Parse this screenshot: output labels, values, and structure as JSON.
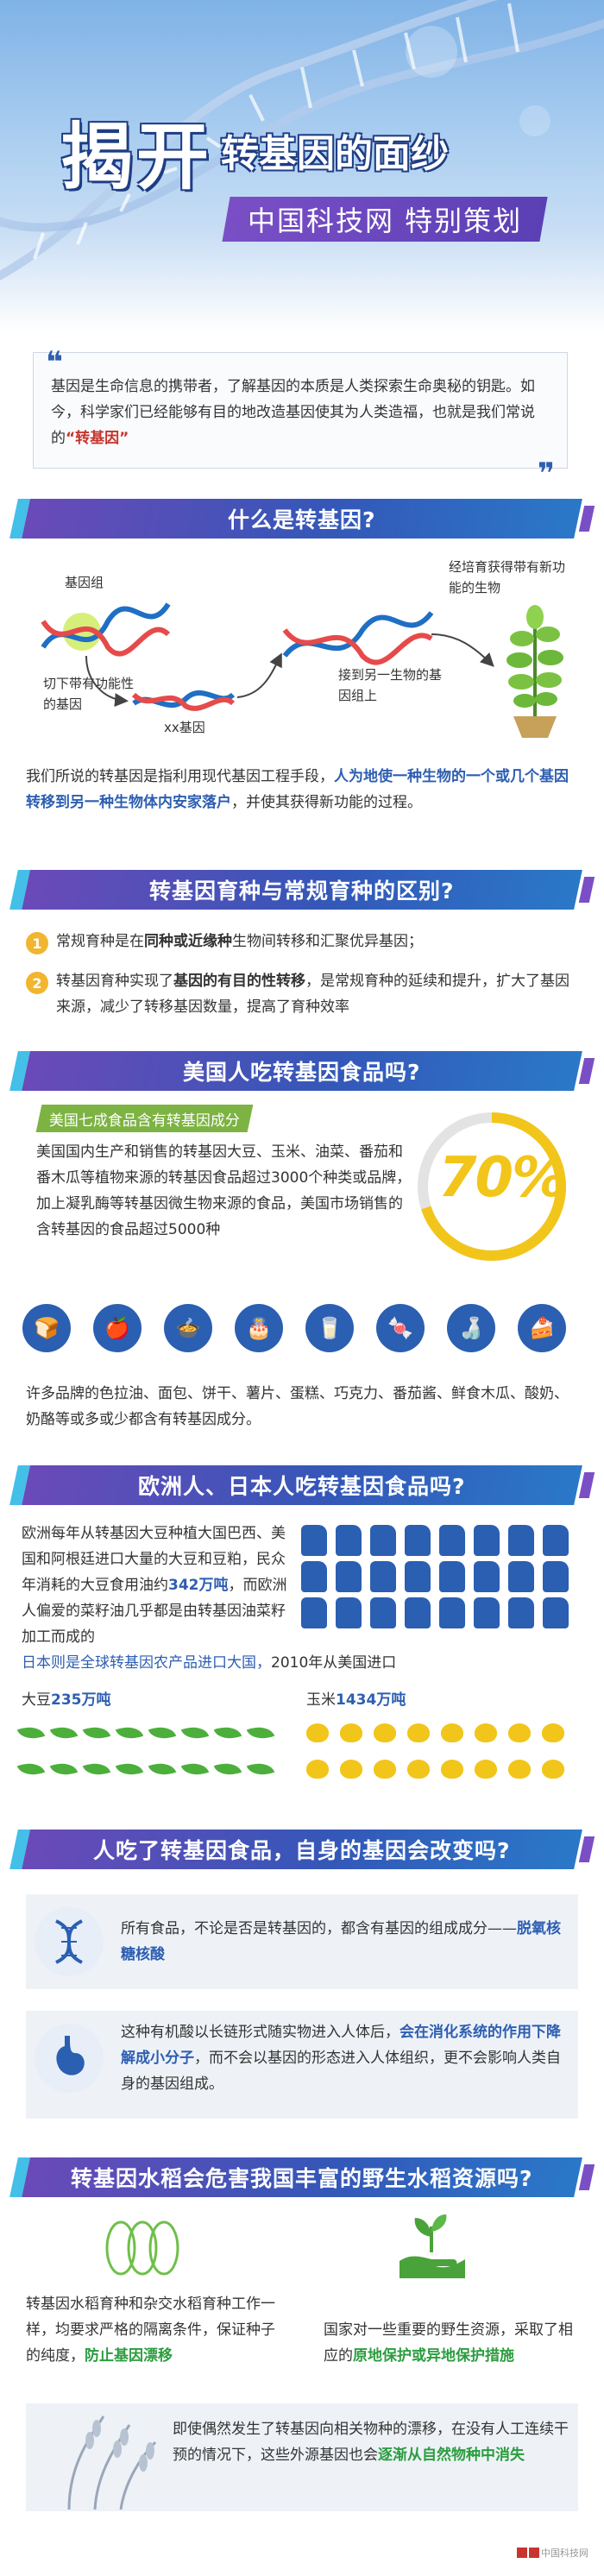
{
  "header": {
    "title_main": "揭开",
    "title_sub": "转基因的面纱",
    "subtitle": "中国科技网  特别策划"
  },
  "intro": {
    "text": "基因是生命信息的携带者，了解基因的本质是人类探索生命奥秘的钥匙。如今，科学家们已经能够有目的地改造基因使其为人类造福，也就是我们常说的",
    "highlight": "“转基因”"
  },
  "section1": {
    "title": "什么是转基因?",
    "label_gene_group": "基因组",
    "label_cut": "切下带有功能性的基因",
    "label_xx": "xx基因",
    "label_connect": "接到另一生物的基因组上",
    "label_result": "经培育获得带有新功能的生物",
    "desc_a": "我们所说的转基因是指利用现代基因工程手段，",
    "desc_b": "人为地使一种生物的一个或几个基因转移到另一种生物体内安家落户",
    "desc_c": "，并使其获得新功能的过程。"
  },
  "section2": {
    "title": "转基因育种与常规育种的区别?",
    "item1_num": "1",
    "item1_a": "常规育种是在",
    "item1_b": "同种或近缘种",
    "item1_c": "生物间转移和汇聚优异基因；",
    "item2_num": "2",
    "item2_a": "转基因育种实现了",
    "item2_b": "基因的有目的性转移",
    "item2_c": "，是常规育种的延续和提升，扩大了基因来源，减少了转移基因数量，提高了育种效率"
  },
  "section3": {
    "title": "美国人吃转基因食品吗?",
    "banner": "美国七成食品含有转基因成分",
    "percent": "70%",
    "body": "美国国内生产和销售的转基因大豆、玉米、油菜、番茄和番木瓜等植物来源的转基因食品超过3000个种类或品牌，加上凝乳酶等转基因微生物来源的食品，美国市场销售的含转基因的食品超过5000种",
    "footer": "许多品牌的色拉油、面包、饼干、薯片、蛋糕、巧克力、番茄酱、鲜食木瓜、酸奶、奶酪等或多或少都含有转基因成分。",
    "icons": [
      "bread-icon",
      "apple-icon",
      "pot-icon",
      "cake-icon",
      "milk-box-icon",
      "candy-icon",
      "bottle-icon",
      "cake-slice-icon"
    ]
  },
  "section4": {
    "title": "欧洲人、日本人吃转基因食品吗?",
    "body_a": "欧洲每年从转基因大豆种植大国巴西、美国和阿根廷进口大量的大豆和豆粕，民众年消耗的大豆食用油约",
    "body_b": "342万吨",
    "body_c": "，而欧洲人偏爱的菜籽油几乎都是由转基因油菜籽加工而成的",
    "japan_a": "日本则是全球转基因农产品进口大国，",
    "japan_b": "2010年从美国进口",
    "soy_label": "大豆",
    "soy_value": "235万吨",
    "corn_label": "玉米",
    "corn_value": "1434万吨"
  },
  "section5": {
    "title": "人吃了转基因食品，自身的基因会改变吗?",
    "p1_a": "所有食品，不论是否是转基因的，都含有基因的组成成分——",
    "p1_b": "脱氧核糖核酸",
    "p2_a": "这种有机酸以长链形式随实物进入人体后，",
    "p2_b": "会在消化系统的作用下降解成小分子",
    "p2_c": "，而不会以基因的形态进入人体组织，更不会影响人类自身的基因组成。"
  },
  "section6": {
    "title": "转基因水稻会危害我国丰富的野生水稻资源吗?",
    "left_a": "转基因水稻育种和杂交水稻育种工作一样，均要求严格的隔离条件，保证种子的纯度，",
    "left_b": "防止基因漂移",
    "right_a": "国家对一些重要的野生资源，采取了相应的",
    "right_b": "原地保护或异地保护措施",
    "bottom_a": "即使偶然发生了转基因向相关物种的漂移，在没有人工连续干预的情况下，这些外源基因也会",
    "bottom_b": "逐渐从自然物种中消失"
  },
  "footer": {
    "mark": "中国科技网"
  }
}
